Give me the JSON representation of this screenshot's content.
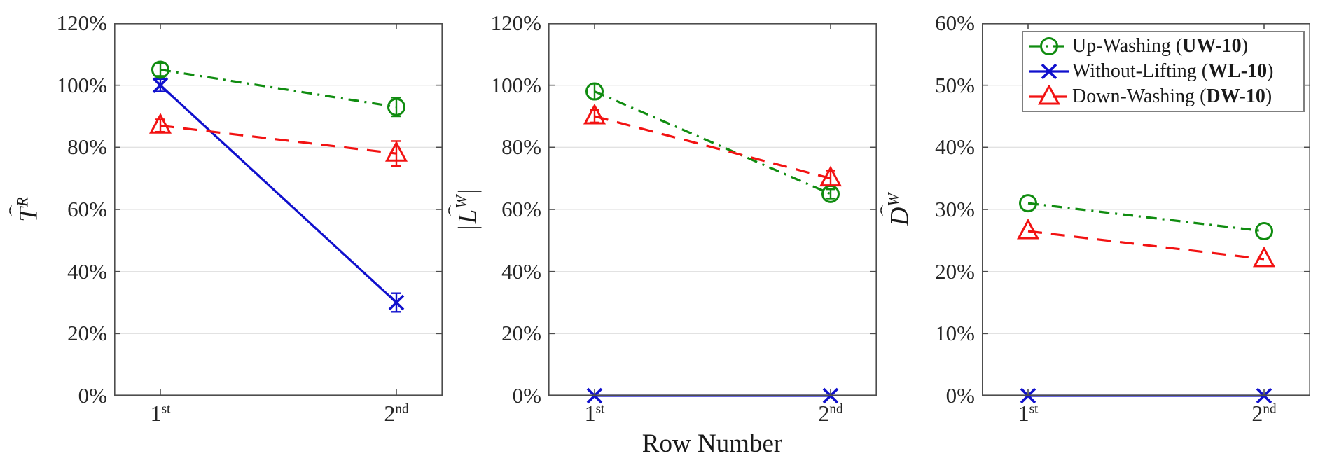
{
  "figure": {
    "xlabel": "Row Number",
    "background": "#ffffff",
    "x_tick_labels": [
      {
        "base": "1",
        "sup": "st"
      },
      {
        "base": "2",
        "sup": "nd"
      }
    ]
  },
  "legend": {
    "position": "top-right-of-third-panel",
    "entries": [
      {
        "label": "Up-Washing",
        "code": "UW-10",
        "color": "#108c10",
        "line": "dashdot",
        "marker": "circle"
      },
      {
        "label": "Without-Lifting",
        "code": "WL-10",
        "color": "#1010cd",
        "line": "solid",
        "marker": "x"
      },
      {
        "label": "Down-Washing",
        "code": "DW-10",
        "color": "#f21212",
        "line": "dashed",
        "marker": "triangle"
      }
    ]
  },
  "colors": {
    "grid": "#e2e2e2",
    "axis_box": "#4d4d4d",
    "tick_text": "#262626"
  },
  "chart_data": [
    {
      "type": "line",
      "title": "",
      "xlabel": "Row Number",
      "ylabel": "T̂^R",
      "ylabel_parts": {
        "abs": false,
        "letter": "T",
        "sup": "R"
      },
      "ylim": [
        0,
        120
      ],
      "ytick_step": 20,
      "ytick_suffix": "%",
      "grid": "horizontal",
      "categories": [
        "1st",
        "2nd"
      ],
      "series": [
        {
          "name": "UW-10",
          "values": [
            105,
            93
          ],
          "errors": [
            2,
            3
          ]
        },
        {
          "name": "WL-10",
          "values": [
            100,
            30
          ],
          "errors": [
            2,
            3
          ]
        },
        {
          "name": "DW-10",
          "values": [
            87,
            78
          ],
          "errors": [
            2,
            4
          ]
        }
      ]
    },
    {
      "type": "line",
      "title": "",
      "xlabel": "Row Number",
      "ylabel": "|L̂^W|",
      "ylabel_parts": {
        "abs": true,
        "letter": "L",
        "sup": "W"
      },
      "ylim": [
        0,
        120
      ],
      "ytick_step": 20,
      "ytick_suffix": "%",
      "grid": "horizontal",
      "categories": [
        "1st",
        "2nd"
      ],
      "series": [
        {
          "name": "UW-10",
          "values": [
            98,
            65
          ],
          "errors": [
            2.5,
            1.5
          ]
        },
        {
          "name": "WL-10",
          "values": [
            0,
            0
          ],
          "errors": null
        },
        {
          "name": "DW-10",
          "values": [
            90,
            70
          ],
          "errors": [
            2,
            2.5
          ]
        }
      ]
    },
    {
      "type": "line",
      "title": "",
      "xlabel": "Row Number",
      "ylabel": "D̂^W",
      "ylabel_parts": {
        "abs": false,
        "letter": "D",
        "sup": "W"
      },
      "ylim": [
        0,
        60
      ],
      "ytick_step": 10,
      "ytick_suffix": "%",
      "grid": "horizontal",
      "categories": [
        "1st",
        "2nd"
      ],
      "series": [
        {
          "name": "UW-10",
          "values": [
            31,
            26.5
          ],
          "errors": null
        },
        {
          "name": "WL-10",
          "values": [
            0,
            0
          ],
          "errors": null
        },
        {
          "name": "DW-10",
          "values": [
            26.5,
            22
          ],
          "errors": null
        }
      ]
    }
  ]
}
